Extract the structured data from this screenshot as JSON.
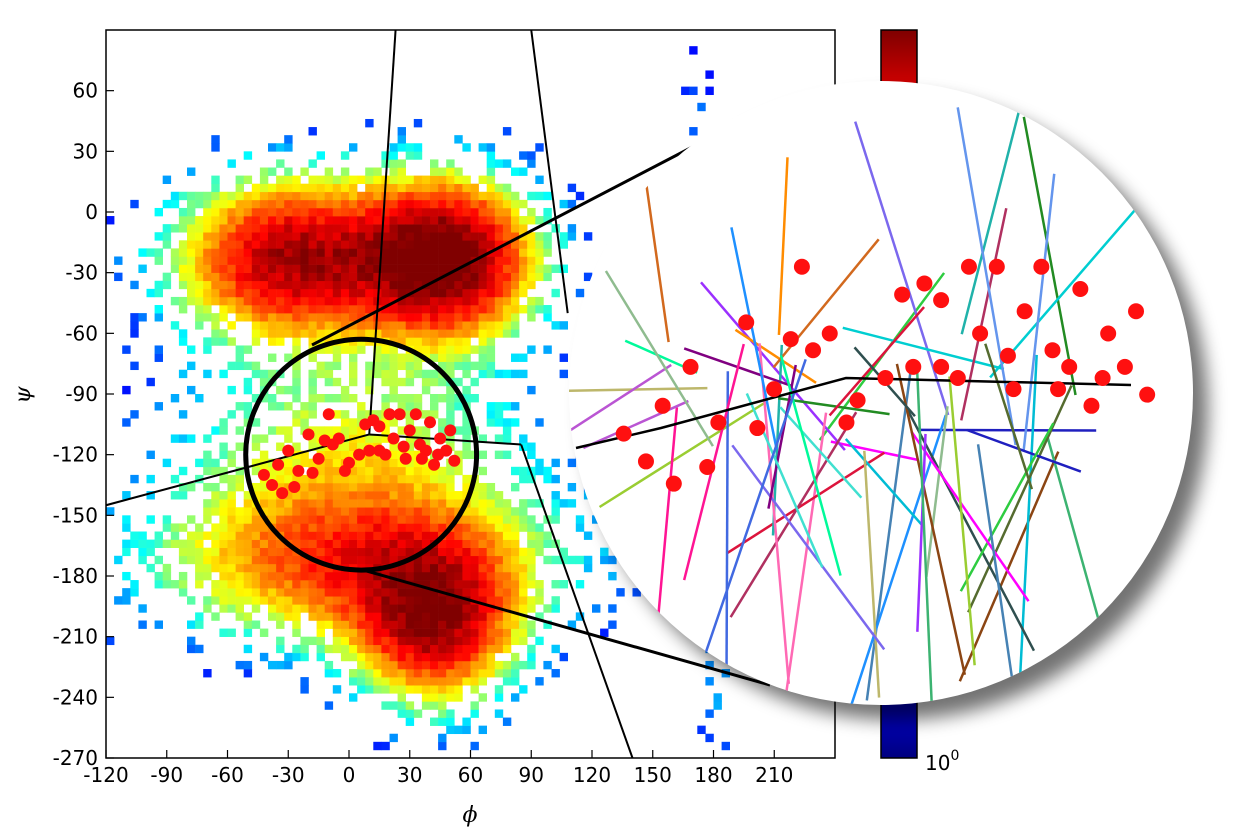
{
  "chart_data": {
    "type": "heatmap",
    "title": "",
    "xlabel": "ϕ",
    "ylabel": "ψ",
    "xlim": [
      -120,
      240
    ],
    "ylim": [
      -270,
      90
    ],
    "xticks": [
      -120,
      -90,
      -60,
      -30,
      0,
      30,
      60,
      90,
      120,
      150,
      180,
      210
    ],
    "yticks": [
      60,
      30,
      0,
      -30,
      -60,
      -90,
      -120,
      -150,
      -180,
      -210,
      -240,
      -270
    ],
    "colormap": "jet",
    "colorbar": {
      "scale": "log",
      "min_label_base": "10",
      "min_label_exp": "0"
    },
    "density_clusters": [
      {
        "phi": -30,
        "psi": -25,
        "sigma_phi": 35,
        "sigma_psi": 25,
        "weight": 0.8
      },
      {
        "phi": 45,
        "psi": -25,
        "sigma_phi": 28,
        "sigma_psi": 25,
        "weight": 1.0
      },
      {
        "phi": 0,
        "psi": -120,
        "sigma_phi": 55,
        "sigma_psi": 35,
        "weight": 0.25
      },
      {
        "phi": 0,
        "psi": -175,
        "sigma_phi": 60,
        "sigma_psi": 25,
        "weight": 0.5
      },
      {
        "phi": 40,
        "psi": -205,
        "sigma_phi": 25,
        "sigma_psi": 25,
        "weight": 0.75
      },
      {
        "phi": 170,
        "psi": -5,
        "sigma_phi": 8,
        "sigma_psi": 60,
        "weight": 0.06
      },
      {
        "phi": 180,
        "psi": -235,
        "sigma_phi": 8,
        "sigma_psi": 25,
        "weight": 0.06
      }
    ],
    "highlight_circle": {
      "center_phi": 6,
      "center_psi": -120,
      "radius_phi": 57
    },
    "red_points": [
      [
        -38,
        -135
      ],
      [
        -42,
        -130
      ],
      [
        -35,
        -125
      ],
      [
        -30,
        -118
      ],
      [
        -25,
        -128
      ],
      [
        -20,
        -110
      ],
      [
        -15,
        -122
      ],
      [
        -10,
        -100
      ],
      [
        -5,
        -112
      ],
      [
        -2,
        -128
      ],
      [
        5,
        -120
      ],
      [
        10,
        -118
      ],
      [
        12,
        -103
      ],
      [
        15,
        -106
      ],
      [
        18,
        -120
      ],
      [
        22,
        -112
      ],
      [
        25,
        -100
      ],
      [
        28,
        -122
      ],
      [
        30,
        -108
      ],
      [
        33,
        -100
      ],
      [
        35,
        -115
      ],
      [
        38,
        -118
      ],
      [
        40,
        -104
      ],
      [
        42,
        -125
      ],
      [
        45,
        -112
      ],
      [
        48,
        -118
      ],
      [
        50,
        -108
      ],
      [
        52,
        -123
      ],
      [
        -33,
        -139
      ],
      [
        -27,
        -136
      ],
      [
        -18,
        -129
      ],
      [
        -8,
        -115
      ],
      [
        0,
        -124
      ],
      [
        8,
        -105
      ],
      [
        20,
        -100
      ],
      [
        27,
        -116
      ],
      [
        36,
        -122
      ],
      [
        44,
        -120
      ],
      [
        -12,
        -113
      ],
      [
        15,
        -118
      ]
    ],
    "trajectories": [
      [
        0.2,
        0.4,
        0.55,
        0.1
      ],
      [
        0.4,
        0.25,
        0.7,
        0.9
      ],
      [
        0.6,
        0.3,
        0.3,
        0.85
      ],
      [
        0.8,
        0.2,
        0.5,
        0.95
      ],
      [
        0.35,
        0.5,
        0.75,
        0.2
      ],
      [
        0.55,
        0.45,
        0.25,
        0.15
      ],
      [
        0.7,
        0.5,
        0.9,
        0.8
      ],
      [
        0.25,
        0.6,
        0.6,
        0.95
      ],
      [
        0.45,
        0.55,
        0.85,
        0.35
      ],
      [
        0.3,
        0.35,
        0.15,
        0.15
      ],
      [
        0.65,
        0.4,
        0.65,
        0.05
      ],
      [
        0.5,
        0.6,
        0.4,
        0.98
      ]
    ]
  }
}
